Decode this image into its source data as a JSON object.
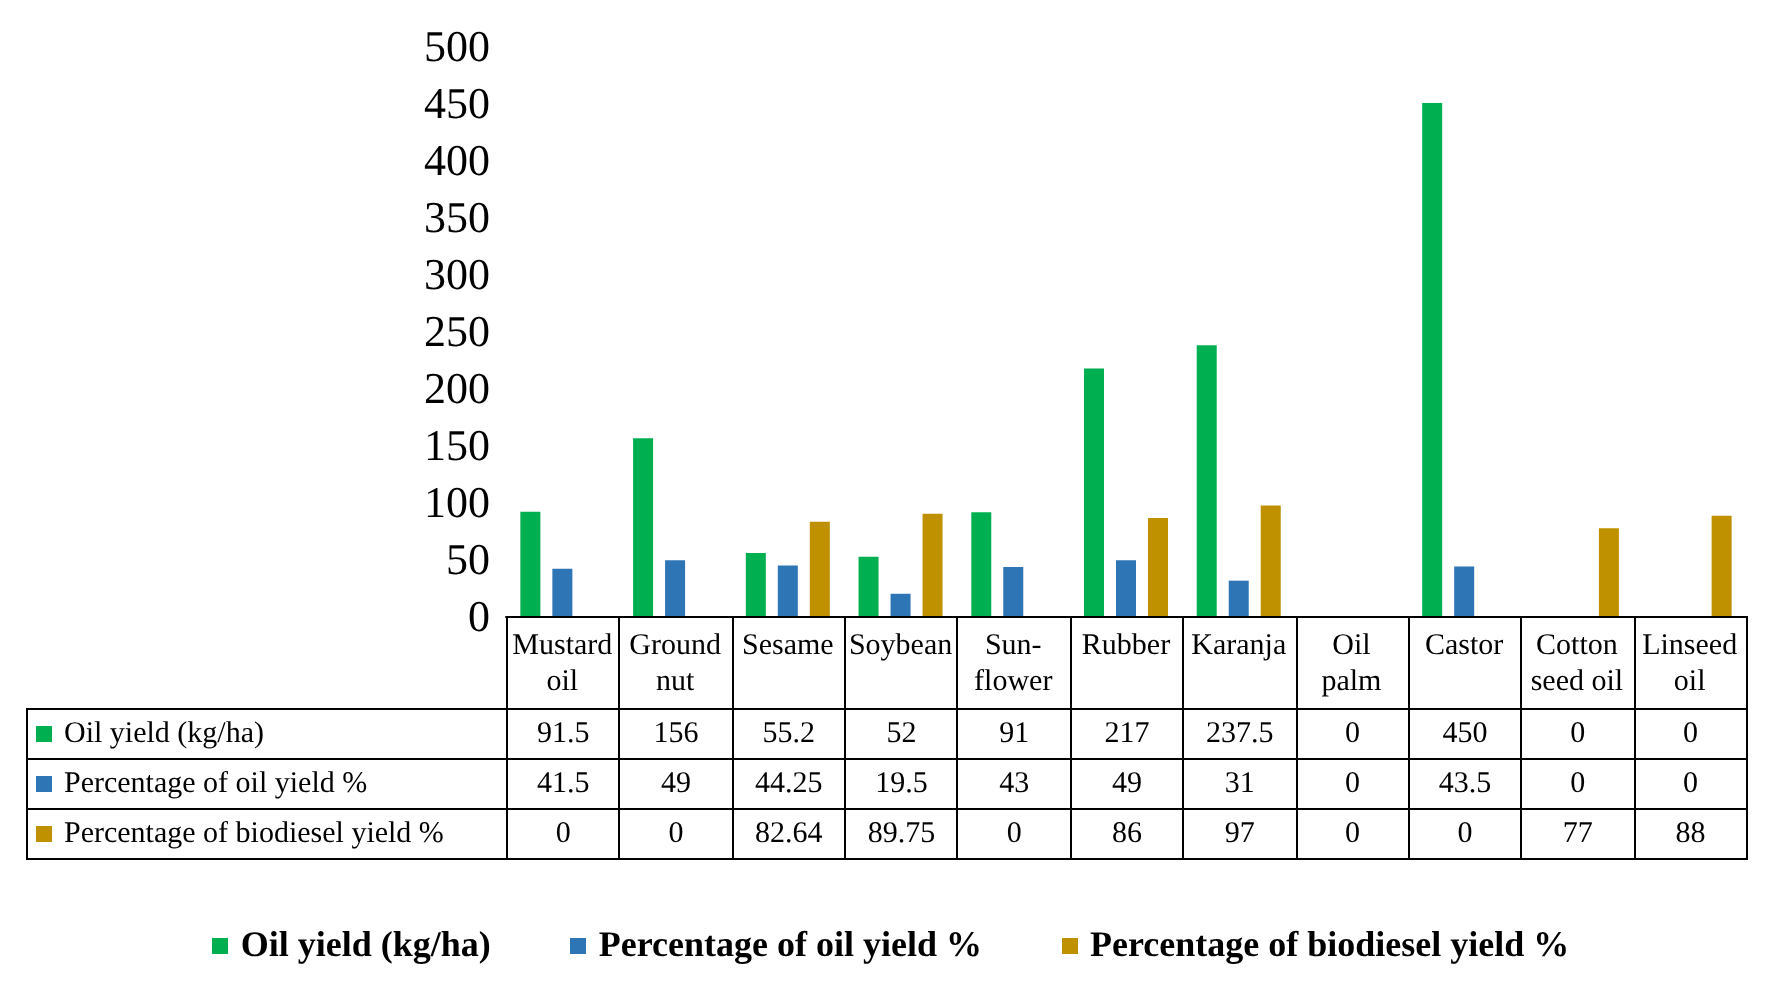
{
  "chart_data": {
    "type": "bar",
    "categories": [
      "Mustard\noil",
      "Ground\nnut",
      "Sesame",
      "Soybean",
      "Sun-\nflower",
      "Rubber",
      "Karanja",
      "Oil\npalm",
      "Castor",
      "Cotton\nseed oil",
      "Linseed\noil"
    ],
    "series": [
      {
        "name": "Oil yield (kg/ha)",
        "color": "#00b050",
        "values": [
          91.5,
          156,
          55.2,
          52,
          91,
          217,
          237.5,
          0,
          450,
          0,
          0
        ]
      },
      {
        "name": "Percentage of oil yield %",
        "color": "#2e75b6",
        "values": [
          41.5,
          49,
          44.25,
          19.5,
          43,
          49,
          31,
          0,
          43.5,
          0,
          0
        ]
      },
      {
        "name": "Percentage of biodiesel yield %",
        "color": "#bf9000",
        "values": [
          0,
          0,
          82.64,
          89.75,
          0,
          86,
          97,
          0,
          0,
          77,
          88
        ]
      }
    ],
    "ylim": [
      0,
      500
    ],
    "yticks": [
      0,
      50,
      100,
      150,
      200,
      250,
      300,
      350,
      400,
      450,
      500
    ],
    "grid": false,
    "legend": "bottom",
    "data_labels": true
  }
}
